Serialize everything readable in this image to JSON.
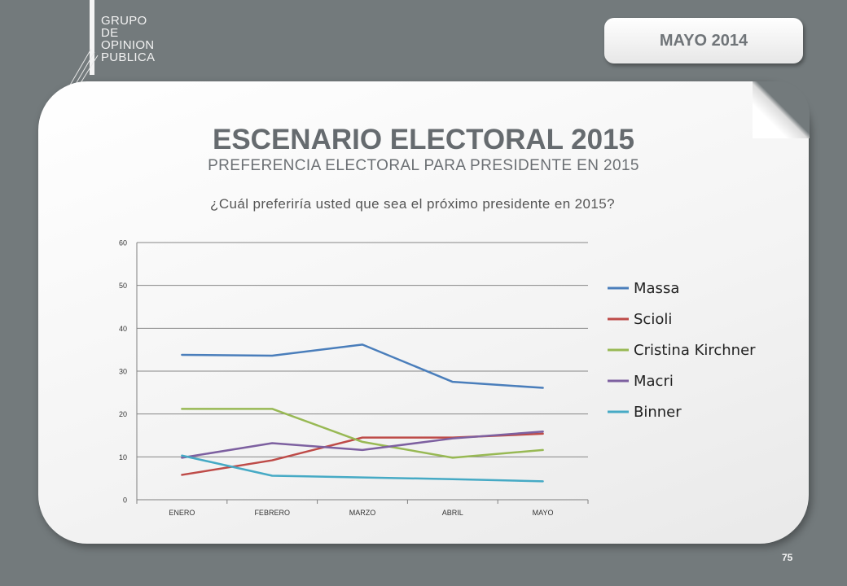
{
  "header": {
    "logo_lines": [
      "GRUPO",
      "DE",
      "OPINION",
      "PUBLICA"
    ],
    "date_badge": "MAYO 2014"
  },
  "slide": {
    "title": "ESCENARIO ELECTORAL 2015",
    "subtitle": "PREFERENCIA ELECTORAL PARA PRESIDENTE EN 2015",
    "question": "¿Cuál preferiría usted que sea el próximo presidente en 2015?",
    "page_number": "75"
  },
  "chart_data": {
    "type": "line",
    "title": "",
    "xlabel": "",
    "ylabel": "",
    "categories": [
      "ENERO",
      "FEBRERO",
      "MARZO",
      "ABRIL",
      "MAYO"
    ],
    "ylim": [
      0,
      60
    ],
    "yticks": [
      0,
      10,
      20,
      30,
      40,
      50,
      60
    ],
    "grid": true,
    "legend_position": "right",
    "series": [
      {
        "name": "Massa",
        "color": "#4a7ebb",
        "values": [
          33.8,
          33.6,
          36.2,
          27.5,
          26.1
        ]
      },
      {
        "name": "Scioli",
        "color": "#be4b48",
        "values": [
          5.8,
          9.2,
          14.5,
          14.5,
          15.4
        ]
      },
      {
        "name": "Cristina Kirchner",
        "color": "#98b954",
        "values": [
          21.2,
          21.2,
          13.5,
          9.8,
          11.6
        ]
      },
      {
        "name": "Macri",
        "color": "#7d60a0",
        "values": [
          9.8,
          13.2,
          11.6,
          14.3,
          15.9
        ]
      },
      {
        "name": "Binner",
        "color": "#46aac5",
        "values": [
          10.3,
          5.6,
          5.2,
          4.8,
          4.3
        ]
      }
    ]
  }
}
